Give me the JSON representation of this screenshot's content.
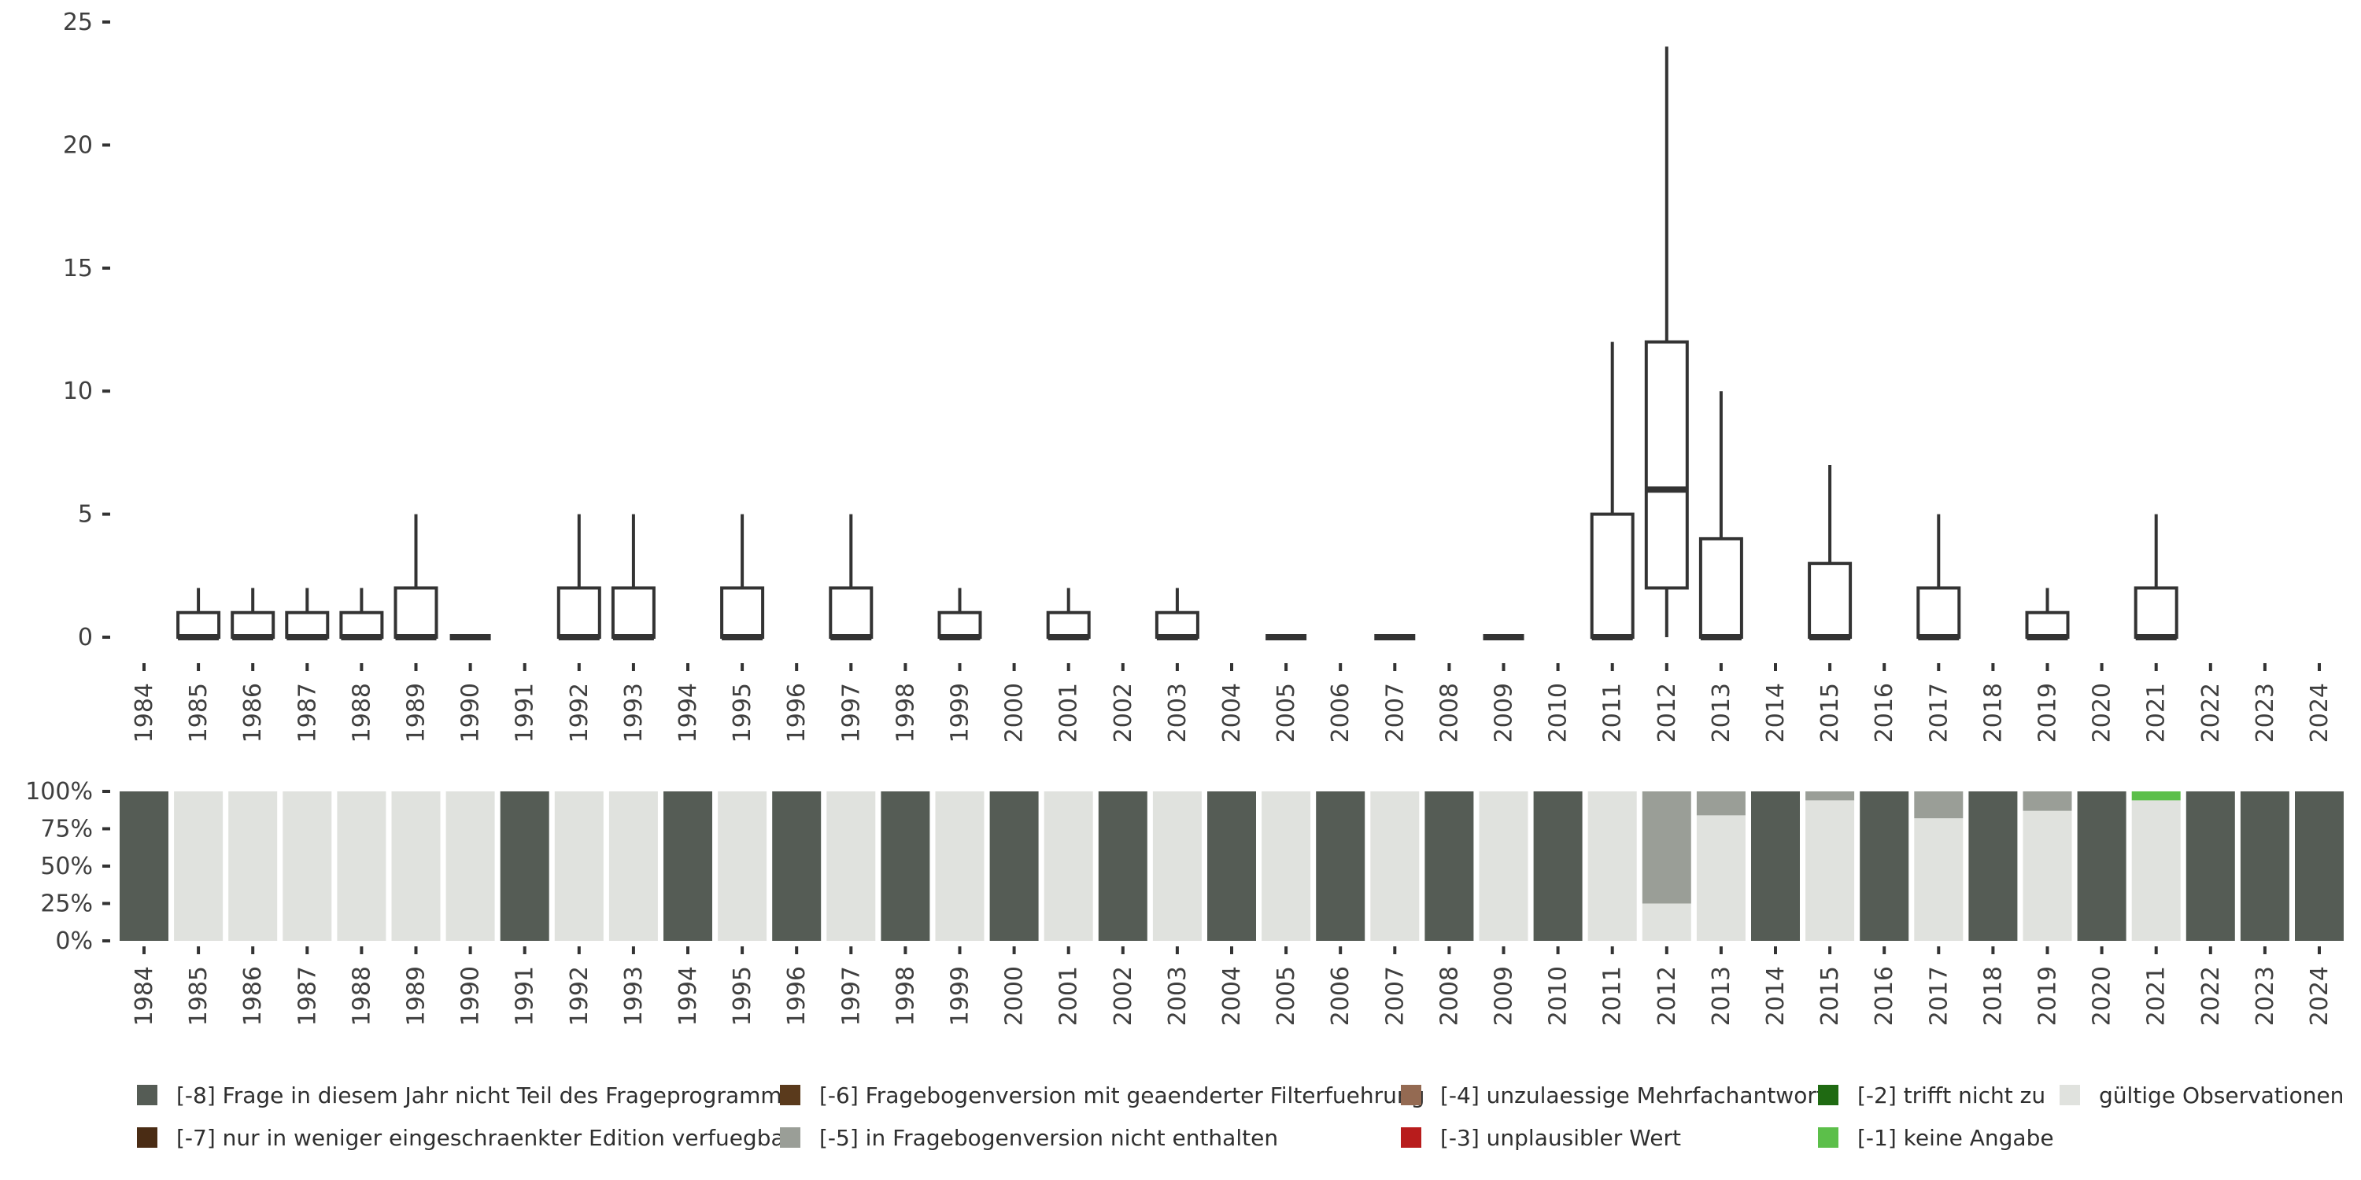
{
  "chart_data": [
    {
      "type": "boxplot",
      "title": "",
      "xlabel": "",
      "ylabel": "",
      "ylim": [
        0,
        25
      ],
      "yticks": [
        "0",
        "5",
        "10",
        "15",
        "20",
        "25"
      ],
      "categories": [
        "1984",
        "1985",
        "1986",
        "1987",
        "1988",
        "1989",
        "1990",
        "1991",
        "1992",
        "1993",
        "1994",
        "1995",
        "1996",
        "1997",
        "1998",
        "1999",
        "2000",
        "2001",
        "2002",
        "2003",
        "2004",
        "2005",
        "2006",
        "2007",
        "2008",
        "2009",
        "2010",
        "2011",
        "2012",
        "2013",
        "2014",
        "2015",
        "2016",
        "2017",
        "2018",
        "2019",
        "2020",
        "2021",
        "2022",
        "2023",
        "2024"
      ],
      "boxes": [
        {
          "year": "1985",
          "min": 0,
          "q1": 0,
          "median": 0,
          "q3": 1,
          "max": 2
        },
        {
          "year": "1986",
          "min": 0,
          "q1": 0,
          "median": 0,
          "q3": 1,
          "max": 2
        },
        {
          "year": "1987",
          "min": 0,
          "q1": 0,
          "median": 0,
          "q3": 1,
          "max": 2
        },
        {
          "year": "1988",
          "min": 0,
          "q1": 0,
          "median": 0,
          "q3": 1,
          "max": 2
        },
        {
          "year": "1989",
          "min": 0,
          "q1": 0,
          "median": 0,
          "q3": 2,
          "max": 5
        },
        {
          "year": "1990",
          "min": 0,
          "q1": 0,
          "median": 0,
          "q3": 0,
          "max": 0
        },
        {
          "year": "1992",
          "min": 0,
          "q1": 0,
          "median": 0,
          "q3": 2,
          "max": 5
        },
        {
          "year": "1993",
          "min": 0,
          "q1": 0,
          "median": 0,
          "q3": 2,
          "max": 5
        },
        {
          "year": "1995",
          "min": 0,
          "q1": 0,
          "median": 0,
          "q3": 2,
          "max": 5
        },
        {
          "year": "1997",
          "min": 0,
          "q1": 0,
          "median": 0,
          "q3": 2,
          "max": 5
        },
        {
          "year": "1999",
          "min": 0,
          "q1": 0,
          "median": 0,
          "q3": 1,
          "max": 2
        },
        {
          "year": "2001",
          "min": 0,
          "q1": 0,
          "median": 0,
          "q3": 1,
          "max": 2
        },
        {
          "year": "2003",
          "min": 0,
          "q1": 0,
          "median": 0,
          "q3": 1,
          "max": 2
        },
        {
          "year": "2005",
          "min": 0,
          "q1": 0,
          "median": 0,
          "q3": 0,
          "max": 0
        },
        {
          "year": "2007",
          "min": 0,
          "q1": 0,
          "median": 0,
          "q3": 0,
          "max": 0
        },
        {
          "year": "2009",
          "min": 0,
          "q1": 0,
          "median": 0,
          "q3": 0,
          "max": 0
        },
        {
          "year": "2011",
          "min": 0,
          "q1": 0,
          "median": 0,
          "q3": 5,
          "max": 12
        },
        {
          "year": "2012",
          "min": 0,
          "q1": 2,
          "median": 6,
          "q3": 12,
          "max": 24
        },
        {
          "year": "2013",
          "min": 0,
          "q1": 0,
          "median": 0,
          "q3": 4,
          "max": 10
        },
        {
          "year": "2015",
          "min": 0,
          "q1": 0,
          "median": 0,
          "q3": 3,
          "max": 7
        },
        {
          "year": "2017",
          "min": 0,
          "q1": 0,
          "median": 0,
          "q3": 2,
          "max": 5
        },
        {
          "year": "2019",
          "min": 0,
          "q1": 0,
          "median": 0,
          "q3": 1,
          "max": 2
        },
        {
          "year": "2021",
          "min": 0,
          "q1": 0,
          "median": 0,
          "q3": 2,
          "max": 5
        }
      ]
    },
    {
      "type": "stacked-bar",
      "title": "",
      "ylim": [
        0,
        100
      ],
      "yticks": [
        "0%",
        "25%",
        "50%",
        "75%",
        "100%"
      ],
      "categories": [
        "1984",
        "1985",
        "1986",
        "1987",
        "1988",
        "1989",
        "1990",
        "1991",
        "1992",
        "1993",
        "1994",
        "1995",
        "1996",
        "1997",
        "1998",
        "1999",
        "2000",
        "2001",
        "2002",
        "2003",
        "2004",
        "2005",
        "2006",
        "2007",
        "2008",
        "2009",
        "2010",
        "2011",
        "2012",
        "2013",
        "2014",
        "2015",
        "2016",
        "2017",
        "2018",
        "2019",
        "2020",
        "2021",
        "2022",
        "2023",
        "2024"
      ],
      "series": [
        {
          "name": "gültige Observationen",
          "color": "#e0e2de",
          "values": [
            0,
            100,
            100,
            100,
            100,
            100,
            100,
            0,
            100,
            100,
            0,
            100,
            0,
            100,
            0,
            100,
            0,
            100,
            0,
            100,
            0,
            100,
            0,
            100,
            0,
            100,
            0,
            100,
            25,
            84,
            0,
            94,
            0,
            82,
            0,
            87,
            0,
            94,
            0,
            0,
            0
          ]
        },
        {
          "name": "[-1] keine Angabe",
          "color": "#5cbf4a",
          "values": [
            0,
            0,
            0,
            0,
            0,
            0,
            0,
            0,
            0,
            0,
            0,
            0,
            0,
            0,
            0,
            0,
            0,
            0,
            0,
            0,
            0,
            0,
            0,
            0,
            0,
            0,
            0,
            0,
            0,
            0,
            0,
            0,
            0,
            0,
            0,
            0,
            0,
            6,
            0,
            0,
            0
          ]
        },
        {
          "name": "[-5] in Fragebogenversion nicht enthalten",
          "color": "#9a9e97",
          "values": [
            0,
            0,
            0,
            0,
            0,
            0,
            0,
            0,
            0,
            0,
            0,
            0,
            0,
            0,
            0,
            0,
            0,
            0,
            0,
            0,
            0,
            0,
            0,
            0,
            0,
            0,
            0,
            0,
            75,
            16,
            0,
            6,
            0,
            18,
            0,
            13,
            0,
            0,
            0,
            0,
            0
          ]
        },
        {
          "name": "[-8] Frage in diesem Jahr nicht Teil des Frageprogramms",
          "color": "#555c55",
          "values": [
            100,
            0,
            0,
            0,
            0,
            0,
            0,
            100,
            0,
            0,
            100,
            0,
            100,
            0,
            100,
            0,
            100,
            0,
            100,
            0,
            100,
            0,
            100,
            0,
            100,
            0,
            100,
            0,
            0,
            0,
            100,
            0,
            100,
            0,
            100,
            0,
            100,
            0,
            100,
            100,
            100
          ]
        }
      ]
    }
  ],
  "legend": [
    {
      "label": "[-8] Frage in diesem Jahr nicht Teil des Frageprogramms",
      "color": "#555c55"
    },
    {
      "label": "[-6] Fragebogenversion mit geaenderter Filterfuehrung",
      "color": "#5a3a1c"
    },
    {
      "label": "[-4] unzulaessige Mehrfachantwort",
      "color": "#946a52"
    },
    {
      "label": "[-2] trifft nicht zu",
      "color": "#1f6a12"
    },
    {
      "label": "gültige Observationen",
      "color": "#e0e2de"
    },
    {
      "label": "[-7] nur in weniger eingeschraenkter Edition verfuegbar",
      "color": "#4a2c14"
    },
    {
      "label": "[-5] in Fragebogenversion nicht enthalten",
      "color": "#9a9e97"
    },
    {
      "label": "[-3] unplausibler Wert",
      "color": "#b81c1c"
    },
    {
      "label": "[-1] keine Angabe",
      "color": "#5cbf4a"
    }
  ]
}
